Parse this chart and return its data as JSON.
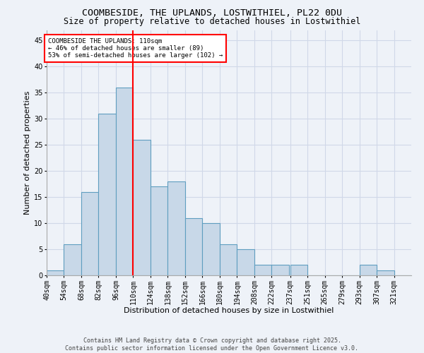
{
  "title": "COOMBESIDE, THE UPLANDS, LOSTWITHIEL, PL22 0DU",
  "subtitle": "Size of property relative to detached houses in Lostwithiel",
  "xlabel": "Distribution of detached houses by size in Lostwithiel",
  "ylabel": "Number of detached properties",
  "bin_labels": [
    "40sqm",
    "54sqm",
    "68sqm",
    "82sqm",
    "96sqm",
    "110sqm",
    "124sqm",
    "138sqm",
    "152sqm",
    "166sqm",
    "180sqm",
    "194sqm",
    "208sqm",
    "222sqm",
    "237sqm",
    "251sqm",
    "265sqm",
    "279sqm",
    "293sqm",
    "307sqm",
    "321sqm"
  ],
  "bin_edges": [
    40,
    54,
    68,
    82,
    96,
    110,
    124,
    138,
    152,
    166,
    180,
    194,
    208,
    222,
    237,
    251,
    265,
    279,
    293,
    307,
    321
  ],
  "values": [
    1,
    6,
    16,
    31,
    36,
    26,
    17,
    18,
    11,
    10,
    6,
    5,
    2,
    2,
    2,
    0,
    0,
    0,
    2,
    1,
    0
  ],
  "bar_color": "#c8d8e8",
  "bar_edge_color": "#5f9ec0",
  "grid_color": "#d0d8e8",
  "bg_color": "#eef2f8",
  "vline_x": 110,
  "vline_color": "red",
  "annotation_text": "COOMBESIDE THE UPLANDS: 110sqm\n← 46% of detached houses are smaller (89)\n53% of semi-detached houses are larger (102) →",
  "annotation_box_color": "white",
  "annotation_box_edge": "red",
  "footer_text": "Contains HM Land Registry data © Crown copyright and database right 2025.\nContains public sector information licensed under the Open Government Licence v3.0.",
  "ylim": [
    0,
    47
  ],
  "yticks": [
    0,
    5,
    10,
    15,
    20,
    25,
    30,
    35,
    40,
    45
  ],
  "title_fontsize": 9.5,
  "subtitle_fontsize": 8.5,
  "axis_label_fontsize": 8,
  "tick_fontsize": 7,
  "footer_fontsize": 6,
  "annotation_fontsize": 6.5
}
